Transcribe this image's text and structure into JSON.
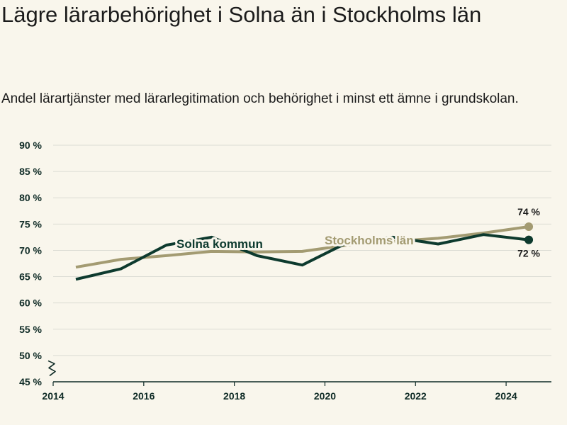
{
  "title": "Lägre lärarbehörighet i Solna än i Stockholms län",
  "subtitle": "Andel lärartjänster med lärarlegitimation och behörighet i minst ett ämne i grundskolan.",
  "colors": {
    "background": "#f9f6ec",
    "solna": "#0d3a2e",
    "stockholm": "#a39b72",
    "grid": "#dcdcd4",
    "axis": "#0f2b26"
  },
  "chart_data": {
    "type": "line",
    "title": "Lägre lärarbehörighet i Solna än i Stockholms län",
    "subtitle": "Andel lärartjänster med lärarlegitimation och behörighet i minst ett ämne i grundskolan.",
    "xlim": [
      2014,
      2025
    ],
    "ylim": [
      45,
      90
    ],
    "x_ticks": [
      2014,
      2016,
      2018,
      2020,
      2022,
      2024
    ],
    "y_ticks": [
      45,
      50,
      55,
      60,
      65,
      70,
      75,
      80,
      85,
      90
    ],
    "y_tick_labels": [
      "45 %",
      "50 %",
      "55 %",
      "60 %",
      "65 %",
      "70 %",
      "75 %",
      "80 %",
      "85 %",
      "90 %"
    ],
    "axis_break": true,
    "grid": true,
    "series": [
      {
        "name": "Solna kommun",
        "color": "#0d3a2e",
        "x": [
          2014.5,
          2015.5,
          2016.5,
          2017.5,
          2018.5,
          2019.5,
          2020.5,
          2021.5,
          2022.5,
          2023.5,
          2024.5
        ],
        "values": [
          64.5,
          66.5,
          71,
          72.5,
          69,
          67.2,
          71.5,
          72.5,
          71.2,
          73,
          72
        ],
        "end_label": "72 %"
      },
      {
        "name": "Stockholms län",
        "color": "#a39b72",
        "x": [
          2014.5,
          2015.5,
          2016.5,
          2017.5,
          2018.5,
          2019.5,
          2020.5,
          2021.5,
          2022.5,
          2023.5,
          2024.5
        ],
        "values": [
          66.8,
          68.3,
          69,
          69.8,
          69.7,
          69.8,
          71,
          71.7,
          72.3,
          73.3,
          74.5
        ],
        "end_label": "74 %"
      }
    ]
  }
}
